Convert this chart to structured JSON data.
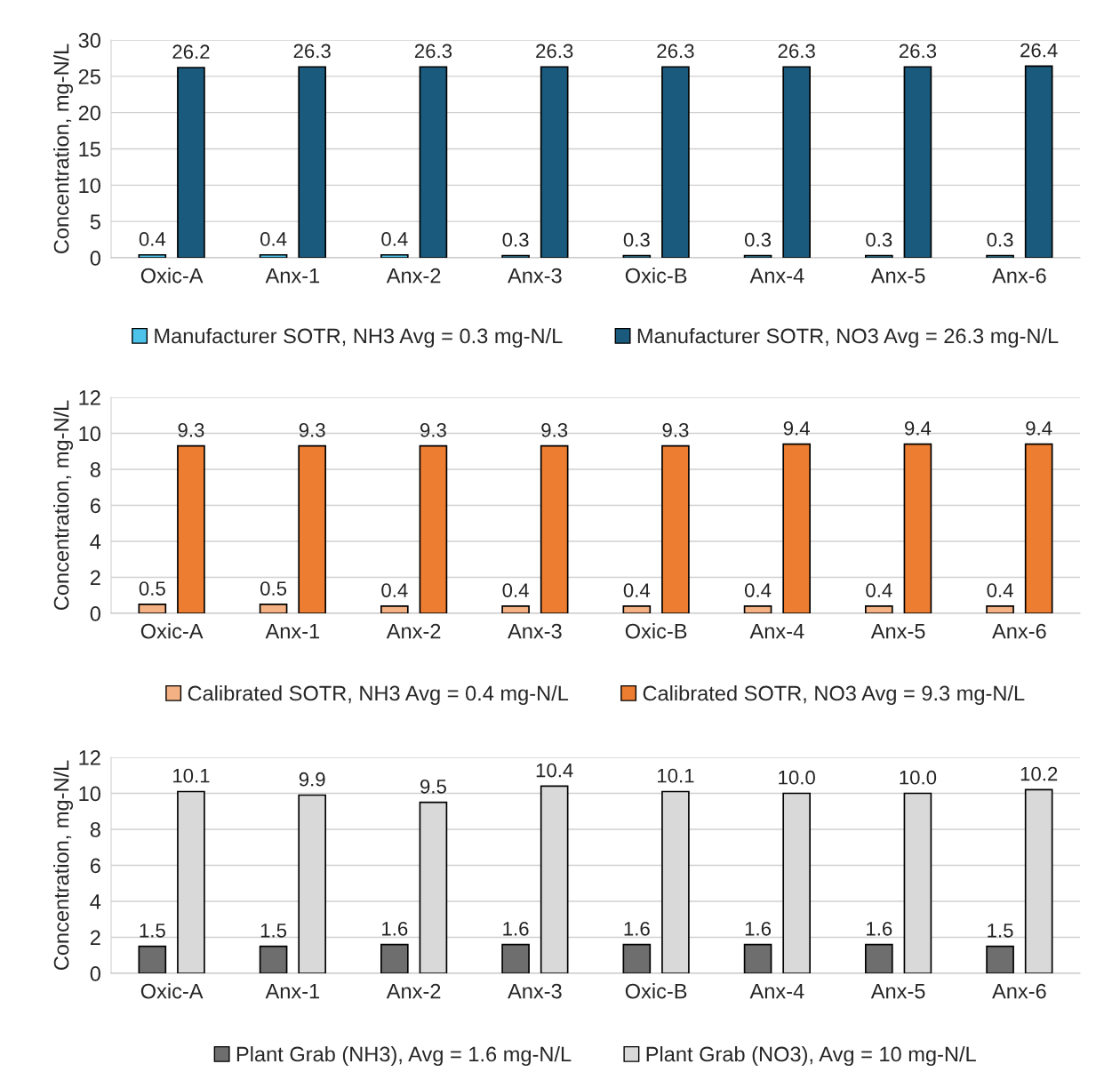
{
  "chart_data": [
    {
      "type": "bar",
      "ylabel": "Concentration, mg-N/L",
      "categories": [
        "Oxic-A",
        "Anx-1",
        "Anx-2",
        "Anx-3",
        "Oxic-B",
        "Anx-4",
        "Anx-5",
        "Anx-6"
      ],
      "ylim": [
        0,
        30
      ],
      "yticks": [
        0,
        5,
        10,
        15,
        20,
        25,
        30
      ],
      "grid": "y",
      "legend": "bottom",
      "data_labels": true,
      "series": [
        {
          "name": "Manufacturer SOTR, NH3 Avg = 0.3 mg-N/L",
          "color": "#4dc3ea",
          "values": [
            0.4,
            0.4,
            0.4,
            0.3,
            0.3,
            0.3,
            0.3,
            0.3
          ]
        },
        {
          "name": "Manufacturer SOTR, NO3 Avg = 26.3 mg-N/L",
          "color": "#1a5a7c",
          "values": [
            26.2,
            26.3,
            26.3,
            26.3,
            26.3,
            26.3,
            26.3,
            26.4
          ]
        }
      ]
    },
    {
      "type": "bar",
      "ylabel": "Concentration, mg-N/L",
      "categories": [
        "Oxic-A",
        "Anx-1",
        "Anx-2",
        "Anx-3",
        "Oxic-B",
        "Anx-4",
        "Anx-5",
        "Anx-6"
      ],
      "ylim": [
        0,
        12
      ],
      "yticks": [
        0,
        2,
        4,
        6,
        8,
        10,
        12
      ],
      "grid": "y",
      "legend": "bottom",
      "data_labels": true,
      "series": [
        {
          "name": "Calibrated SOTR, NH3 Avg = 0.4 mg-N/L",
          "color": "#f4b183",
          "values": [
            0.5,
            0.5,
            0.4,
            0.4,
            0.4,
            0.4,
            0.4,
            0.4
          ]
        },
        {
          "name": "Calibrated SOTR, NO3 Avg = 9.3 mg-N/L",
          "color": "#ed7d31",
          "values": [
            9.3,
            9.3,
            9.3,
            9.3,
            9.3,
            9.4,
            9.4,
            9.4
          ]
        }
      ]
    },
    {
      "type": "bar",
      "ylabel": "Concentration, mg-N/L",
      "categories": [
        "Oxic-A",
        "Anx-1",
        "Anx-2",
        "Anx-3",
        "Oxic-B",
        "Anx-4",
        "Anx-5",
        "Anx-6"
      ],
      "ylim": [
        0,
        12
      ],
      "yticks": [
        0,
        2,
        4,
        6,
        8,
        10,
        12
      ],
      "grid": "y",
      "legend": "bottom",
      "data_labels": true,
      "series": [
        {
          "name": "Plant Grab (NH3), Avg = 1.6 mg-N/L",
          "color": "#6e6e6e",
          "values": [
            1.5,
            1.5,
            1.6,
            1.6,
            1.6,
            1.6,
            1.6,
            1.5
          ]
        },
        {
          "name": "Plant Grab (NO3), Avg = 10 mg-N/L",
          "color": "#d9d9d9",
          "values": [
            10.1,
            9.9,
            9.5,
            10.4,
            10.1,
            10,
            10,
            10.2
          ],
          "value_labels": [
            "10.1",
            "9.9",
            "9.5",
            "10.4",
            "10.1",
            "10.0",
            "10.0",
            "10.2"
          ]
        }
      ]
    }
  ]
}
